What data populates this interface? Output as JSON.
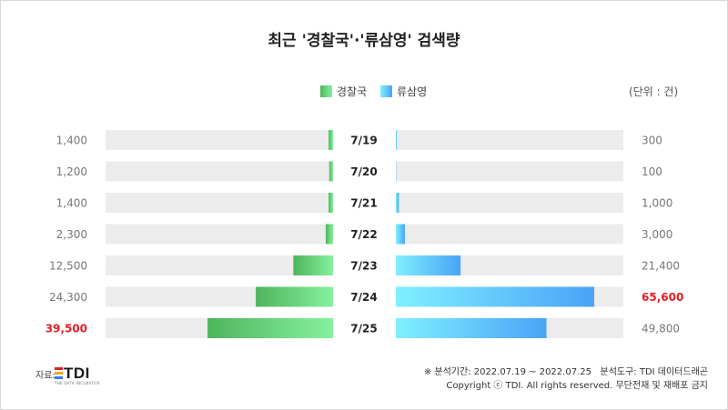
{
  "title": "최근 '경찰국'·'류삼영' 검색량",
  "unit_label": "(단위 : 건)",
  "colors": {
    "left_gradient_start": "#4fb55c",
    "left_gradient_end": "#86f19e",
    "right_gradient_start": "#7ff0ff",
    "right_gradient_end": "#4aa3f7",
    "track": "#ececec",
    "highlight": "#e31d23"
  },
  "chart_data": {
    "type": "bar",
    "subtype": "butterfly",
    "categories": [
      "7/19",
      "7/20",
      "7/21",
      "7/22",
      "7/23",
      "7/24",
      "7/25"
    ],
    "series": [
      {
        "name": "경찰국",
        "side": "left",
        "values": [
          1400,
          1200,
          1400,
          2300,
          12500,
          24300,
          39500
        ],
        "labels": [
          "1,400",
          "1,200",
          "1,400",
          "2,300",
          "12,500",
          "24,300",
          "39,500"
        ],
        "highlight_index": 6
      },
      {
        "name": "류삼영",
        "side": "right",
        "values": [
          300,
          100,
          1000,
          3000,
          21400,
          65600,
          49800
        ],
        "labels": [
          "300",
          "100",
          "1,000",
          "3,000",
          "21,400",
          "65,600",
          "49,800"
        ],
        "highlight_index": 5
      }
    ],
    "legend_position": "top-center",
    "grid": false
  },
  "footer": {
    "source_label": "자료:",
    "logo_text": "TDI",
    "logo_subtext": "THE DATA INCUBATOR",
    "period": "※ 분석기간: 2022.07.19 ~ 2022.07.25   분석도구: TDI 데이터드래곤",
    "copyright": "Copyright ⓒ TDI. All rights reserved. 무단전재 및 재배포 금지"
  }
}
